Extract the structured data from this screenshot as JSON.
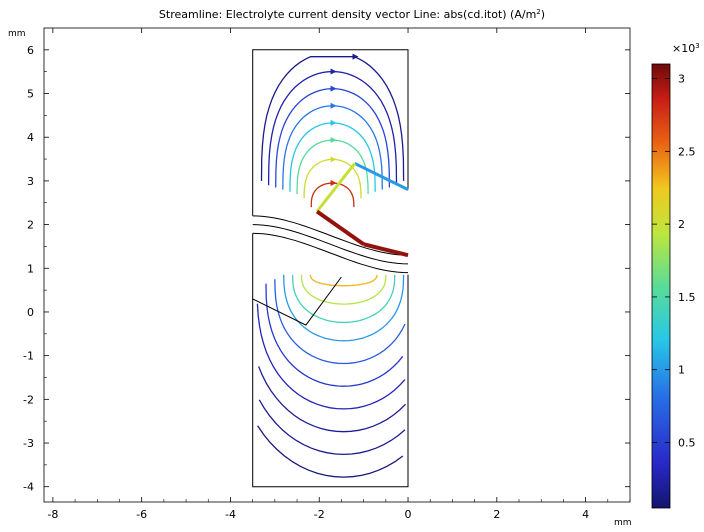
{
  "title": "Streamline: Electrolyte current density vector  Line: abs(cd.itot) (A/m",
  "title_sup": "2",
  "title_tail": ")",
  "colors": {
    "background": "#ffffff",
    "axes": "#000000",
    "geometry": "#000000"
  },
  "chart_data": {
    "type": "contour-streamline",
    "x_unit": "mm",
    "y_unit": "mm",
    "xlim": [
      -8.2,
      5.0
    ],
    "ylim": [
      -4.35,
      6.5
    ],
    "grid": false,
    "x_ticks": [
      "-8",
      "-6",
      "-4",
      "-2",
      "0",
      "2",
      "4"
    ],
    "y_ticks": [
      "-4",
      "-3",
      "-2",
      "-1",
      "0",
      "1",
      "2",
      "3",
      "4",
      "5",
      "6"
    ],
    "colorbar": {
      "label_prefix": "×10",
      "label_exp": "3",
      "min": 0.05,
      "max": 3.1,
      "ticks": [
        "0.5",
        "1",
        "1.5",
        "2",
        "2.5",
        "3"
      ],
      "colormap": "rainbow (dark blue → cyan → yellow → red → dark red)",
      "position": "right"
    },
    "geometry": [
      {
        "name": "upper-outline",
        "points": [
          [
            -3.5,
            2.2
          ],
          [
            -3.5,
            6
          ],
          [
            0,
            6
          ],
          [
            0,
            2.8
          ],
          [
            -1.2,
            3.4
          ],
          [
            -2.05,
            2.3
          ],
          [
            0,
            1.3
          ]
        ]
      },
      {
        "name": "lower-outline",
        "points": [
          [
            -3.5,
            1.8
          ],
          [
            -3.5,
            1.85
          ],
          [
            -3.5,
            1.75
          ],
          [
            -3.5,
            1.8
          ]
        ]
      },
      {
        "name": "lower-outline-2",
        "points": [
          [
            -3.5,
            1.8
          ],
          [
            -3.5,
            1.0
          ],
          [
            -1.5,
            0.8
          ],
          [
            -2.3,
            -0.3
          ],
          [
            -3.5,
            0.3
          ],
          [
            -3.5,
            -4
          ],
          [
            0,
            -4
          ],
          [
            0,
            0.85
          ]
        ]
      }
    ]
  }
}
